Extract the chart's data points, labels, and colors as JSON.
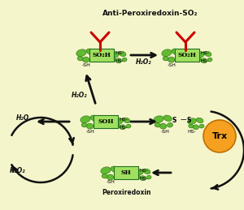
{
  "bg_color": "#f5f5cc",
  "title": "Anti-Peroxiredoxin-SO₂",
  "peroxiredoxin_label": "Peroxiredoxin",
  "trx_label": "Trx",
  "trx_color": "#f5a020",
  "trx_edge": "#c07000",
  "box_color": "#a0e060",
  "box_edge": "#207020",
  "red_color": "#cc0000",
  "arrow_color": "#111111",
  "text_color": "#111111",
  "green_dark": "#2a6a10",
  "green_light": "#60bb30",
  "green_mid": "#50a020"
}
